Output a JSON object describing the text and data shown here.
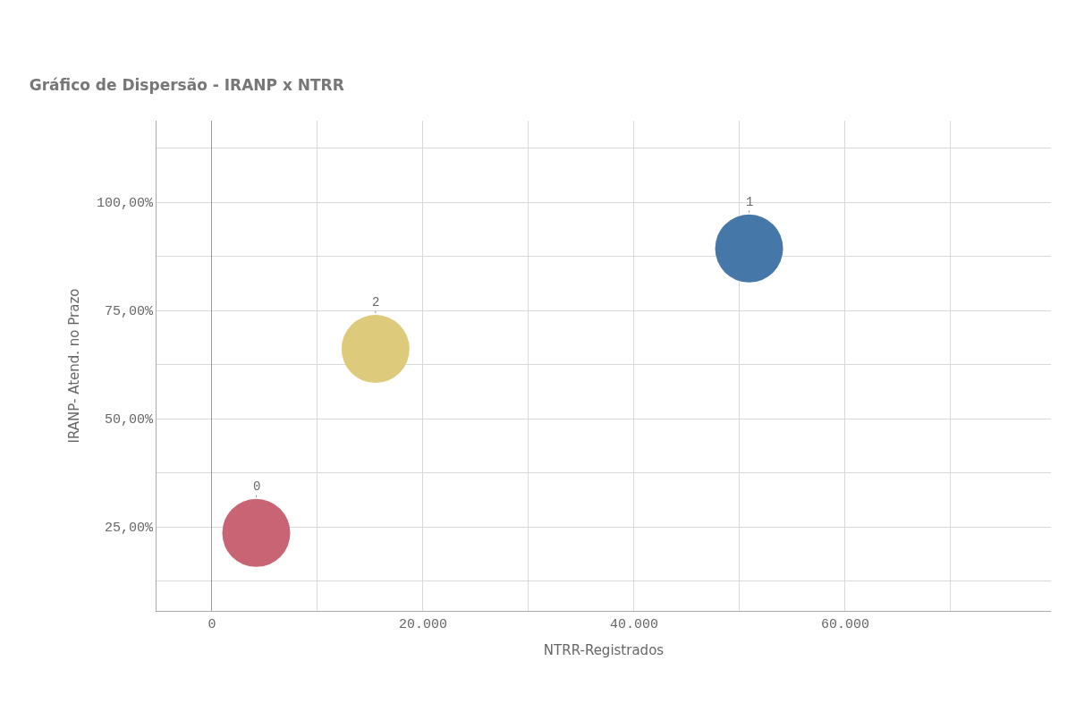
{
  "chart_data": {
    "type": "bubble",
    "title": "Gráfico de Dispersão - IRANP x NTRR",
    "xlabel": "NTRR-Registrados",
    "ylabel": "IRANP- Atend. no Prazo",
    "x": [
      4200,
      15500,
      50900
    ],
    "values": [
      23.6,
      66.1,
      89.3
    ],
    "sizes": [
      1,
      1,
      1
    ],
    "colors": [
      "#c86474",
      "#ddca7a",
      "#4577a8"
    ],
    "annotations": [
      {
        "text": "0",
        "x": 4200,
        "y": 23.6
      },
      {
        "text": "2",
        "x": 15500,
        "y": 66.1
      },
      {
        "text": "1",
        "x": 50900,
        "y": 89.3
      }
    ],
    "xlim": [
      -5250,
      79500
    ],
    "ylim": [
      5.6,
      118.8
    ],
    "xticks": [
      {
        "value": 0,
        "label": "0"
      },
      {
        "value": 10000,
        "label": null
      },
      {
        "value": 20000,
        "label": "20.000"
      },
      {
        "value": 30000,
        "label": null
      },
      {
        "value": 40000,
        "label": "40.000"
      },
      {
        "value": 50000,
        "label": null
      },
      {
        "value": 60000,
        "label": "60.000"
      },
      {
        "value": 70000,
        "label": null
      }
    ],
    "yticks": [
      {
        "value": 12.5,
        "label": null
      },
      {
        "value": 25,
        "label": "25,00%"
      },
      {
        "value": 37.5,
        "label": null
      },
      {
        "value": 50,
        "label": "50,00%"
      },
      {
        "value": 62.5,
        "label": null
      },
      {
        "value": 75,
        "label": "75,00%"
      },
      {
        "value": 87.5,
        "label": null
      },
      {
        "value": 100,
        "label": "100,00%"
      },
      {
        "value": 112.5,
        "label": null
      }
    ],
    "grid": true
  }
}
